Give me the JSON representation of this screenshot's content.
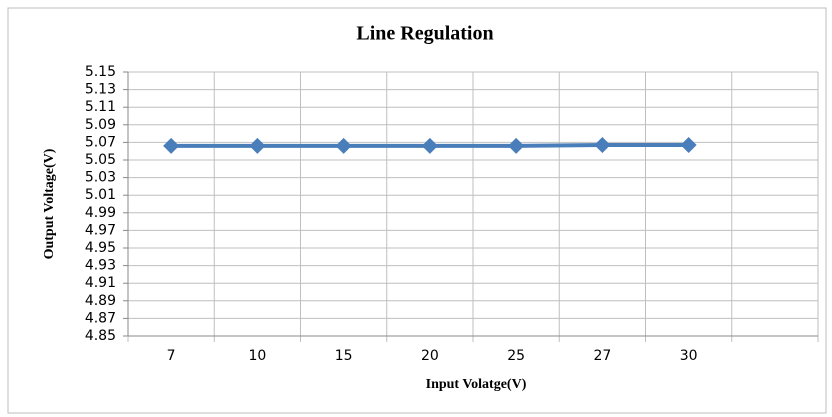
{
  "chart_data": {
    "type": "line",
    "title": "Line Regulation",
    "x_label": "Input Volatge(V)",
    "y_label": "Output Voltage(V)",
    "categories": [
      "7",
      "10",
      "15",
      "20",
      "25",
      "27",
      "30",
      null
    ],
    "series": [
      {
        "name": "Output Voltage",
        "color": "#4a7ebb",
        "values": [
          5.066,
          5.066,
          5.066,
          5.066,
          5.066,
          5.067,
          5.067,
          null
        ]
      }
    ],
    "ylim": [
      4.85,
      5.15
    ],
    "yticks": [
      4.85,
      4.87,
      4.89,
      4.91,
      4.93,
      4.95,
      4.97,
      4.99,
      5.01,
      5.03,
      5.05,
      5.07,
      5.09,
      5.11,
      5.13,
      5.15
    ],
    "grid": true
  }
}
